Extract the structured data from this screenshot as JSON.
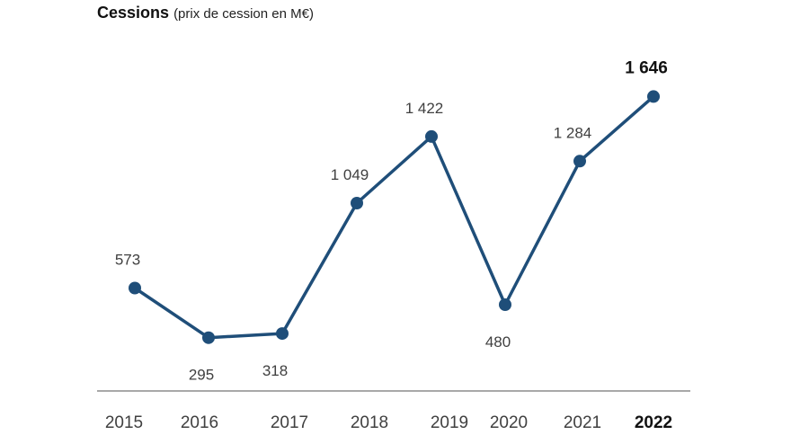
{
  "title": {
    "main": "Cessions",
    "sub": "(prix de cession en M€)"
  },
  "colors": {
    "series": "#1f4e79",
    "axis": "#8c8c8c",
    "label": "#404040"
  },
  "chart_data": {
    "type": "line",
    "title": "Cessions",
    "subtitle": "(prix de cession en M€)",
    "xlabel": "",
    "ylabel": "",
    "grid": false,
    "legend": "none",
    "categories": [
      "2015",
      "2016",
      "2017",
      "2018",
      "2019",
      "2020",
      "2021",
      "2022"
    ],
    "series": [
      {
        "values": [
          573,
          295,
          318,
          1049,
          1422,
          480,
          1284,
          1646
        ],
        "labels": [
          "573",
          "295",
          "318",
          "1 049",
          "1 422",
          "480",
          "1 284",
          "1 646"
        ]
      }
    ],
    "ylim": [
      0,
      1800
    ],
    "highlight_category": "2022"
  }
}
